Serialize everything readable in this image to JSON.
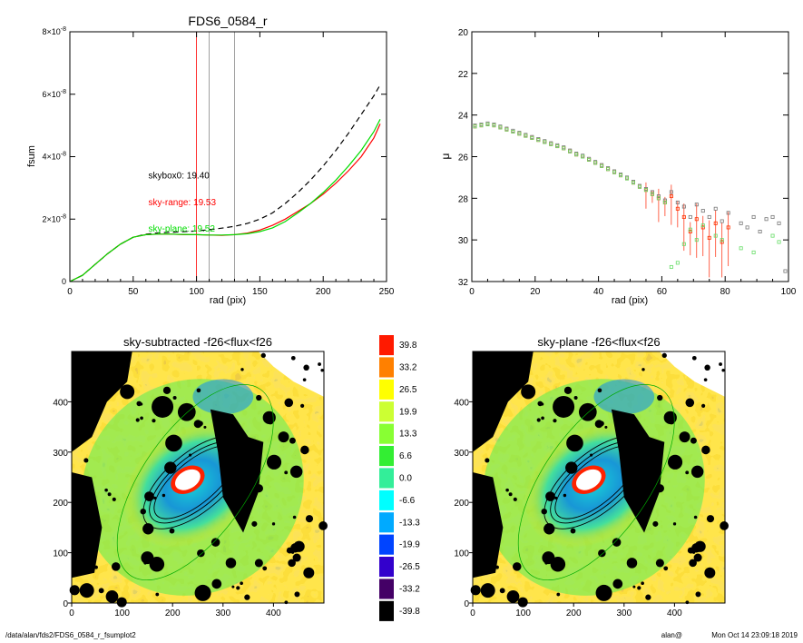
{
  "footer": {
    "path": "/data/alan/fds2/FDS6_0584_r_fsumplot2",
    "user": "alan@",
    "timestamp": "Mon Oct 14 23:09:18 2019"
  },
  "chart_data": [
    {
      "type": "line",
      "title": "FDS6_0584_r",
      "xlabel": "rad (pix)",
      "ylabel": "fsum",
      "xlim": [
        0,
        250
      ],
      "ylim": [
        0,
        8e-08
      ],
      "x_ticks": [
        "0",
        "50",
        "100",
        "150",
        "200",
        "250"
      ],
      "y_ticks": [
        {
          "mantissa": "0",
          "exponent": ""
        },
        {
          "mantissa": "2×10",
          "exponent": "-8"
        },
        {
          "mantissa": "4×10",
          "exponent": "-8"
        },
        {
          "mantissa": "6×10",
          "exponent": "-8"
        },
        {
          "mantissa": "8×10",
          "exponent": "-8"
        }
      ],
      "vlines": [
        {
          "x": 100,
          "color": "#ff0000"
        },
        {
          "x": 110,
          "color": "#888888"
        },
        {
          "x": 130,
          "color": "#888888"
        }
      ],
      "annotations": [
        {
          "text": "skybox0: 19.40",
          "x": 62,
          "y": 3.3e-08,
          "color": "#000000"
        },
        {
          "text": "sky-range: 19.53",
          "x": 62,
          "y": 2.45e-08,
          "color": "#ff0000"
        },
        {
          "text": "sky-plane: 19.52",
          "x": 62,
          "y": 1.6e-08,
          "color": "#00dd00"
        }
      ],
      "series": [
        {
          "style": "dashed",
          "color": "#000000",
          "x": [
            0,
            10,
            20,
            30,
            40,
            50,
            60,
            70,
            80,
            90,
            100,
            110,
            120,
            130,
            140,
            150,
            160,
            170,
            180,
            190,
            200,
            210,
            220,
            230,
            240,
            245
          ],
          "y": [
            0,
            2e-09,
            5.5e-09,
            9e-09,
            1.2e-08,
            1.42e-08,
            1.52e-08,
            1.56e-08,
            1.58e-08,
            1.6e-08,
            1.62e-08,
            1.66e-08,
            1.71e-08,
            1.77e-08,
            1.86e-08,
            2e-08,
            2.2e-08,
            2.5e-08,
            2.85e-08,
            3.25e-08,
            3.7e-08,
            4.2e-08,
            4.75e-08,
            5.35e-08,
            5.95e-08,
            6.3e-08
          ]
        },
        {
          "style": "solid",
          "color": "#ff0000",
          "x": [
            0,
            10,
            20,
            30,
            40,
            50,
            60,
            70,
            80,
            90,
            100,
            110,
            120,
            130,
            140,
            150,
            160,
            170,
            180,
            190,
            200,
            210,
            220,
            230,
            240,
            245
          ],
          "y": [
            0,
            2e-09,
            5.5e-09,
            9e-09,
            1.2e-08,
            1.42e-08,
            1.5e-08,
            1.52e-08,
            1.52e-08,
            1.5e-08,
            1.5e-08,
            1.49e-08,
            1.48e-08,
            1.5e-08,
            1.55e-08,
            1.65e-08,
            1.8e-08,
            2e-08,
            2.25e-08,
            2.5e-08,
            2.8e-08,
            3.15e-08,
            3.55e-08,
            4e-08,
            4.6e-08,
            5.05e-08
          ]
        },
        {
          "style": "solid",
          "color": "#00dd00",
          "x": [
            0,
            10,
            20,
            30,
            40,
            50,
            60,
            70,
            80,
            90,
            100,
            110,
            120,
            130,
            140,
            150,
            160,
            170,
            180,
            190,
            200,
            210,
            220,
            230,
            240,
            245
          ],
          "y": [
            0,
            2e-09,
            5.5e-09,
            9e-09,
            1.2e-08,
            1.42e-08,
            1.5e-08,
            1.52e-08,
            1.52e-08,
            1.51e-08,
            1.5e-08,
            1.49e-08,
            1.49e-08,
            1.5e-08,
            1.53e-08,
            1.6e-08,
            1.72e-08,
            1.92e-08,
            2.2e-08,
            2.5e-08,
            2.85e-08,
            3.25e-08,
            3.7e-08,
            4.2e-08,
            4.8e-08,
            5.2e-08
          ]
        }
      ]
    },
    {
      "type": "scatter",
      "title": "",
      "xlabel": "rad (pix)",
      "ylabel": "μ",
      "xlim": [
        0,
        100
      ],
      "ylim": [
        32,
        20
      ],
      "x_ticks": [
        "0",
        "20",
        "40",
        "60",
        "80",
        "100"
      ],
      "y_ticks": [
        "20",
        "22",
        "24",
        "26",
        "28",
        "30",
        "32"
      ],
      "series": [
        {
          "marker": "square",
          "color": "#777777",
          "x": [
            1,
            3,
            5,
            7,
            9,
            11,
            13,
            15,
            17,
            19,
            21,
            23,
            25,
            27,
            29,
            31,
            33,
            35,
            37,
            39,
            41,
            43,
            45,
            47,
            49,
            51,
            53,
            55,
            57,
            59,
            61,
            63,
            65,
            67,
            69,
            71,
            73,
            75,
            77,
            79,
            81,
            85,
            87,
            89,
            91,
            93,
            95,
            97,
            99
          ],
          "y": [
            24.5,
            24.45,
            24.4,
            24.45,
            24.55,
            24.65,
            24.75,
            24.85,
            24.95,
            25.05,
            25.15,
            25.25,
            25.35,
            25.45,
            25.55,
            25.7,
            25.85,
            25.95,
            26.1,
            26.25,
            26.4,
            26.55,
            26.7,
            26.85,
            27.0,
            27.2,
            27.4,
            27.55,
            27.7,
            27.9,
            28.1,
            27.7,
            28.2,
            28.4,
            28.9,
            28.3,
            28.6,
            28.9,
            28.5,
            29.1,
            28.7,
            29.2,
            29.4,
            28.9,
            29.6,
            29.0,
            28.9,
            29.2,
            31.5
          ]
        },
        {
          "marker": "square",
          "color": "#ff3300",
          "x": [
            1,
            3,
            5,
            7,
            9,
            11,
            13,
            15,
            17,
            19,
            21,
            23,
            25,
            27,
            29,
            31,
            33,
            35,
            37,
            39,
            41,
            43,
            45,
            47,
            49,
            51,
            53,
            55,
            57,
            59,
            61,
            63,
            65,
            67,
            69,
            71,
            73,
            75,
            77,
            79,
            81
          ],
          "y": [
            24.55,
            24.5,
            24.45,
            24.5,
            24.6,
            24.7,
            24.8,
            24.9,
            25.0,
            25.1,
            25.2,
            25.3,
            25.4,
            25.5,
            25.6,
            25.75,
            25.9,
            26.0,
            26.15,
            26.3,
            26.45,
            26.6,
            26.75,
            26.9,
            27.05,
            27.25,
            27.45,
            27.6,
            27.8,
            28.0,
            28.2,
            27.9,
            28.5,
            28.9,
            29.6,
            29.0,
            29.4,
            29.9,
            29.2,
            30.1,
            29.4
          ]
        },
        {
          "marker": "square",
          "color": "#66dd66",
          "x": [
            1,
            3,
            5,
            7,
            9,
            11,
            13,
            15,
            17,
            19,
            21,
            23,
            25,
            27,
            29,
            31,
            33,
            35,
            37,
            39,
            41,
            43,
            45,
            47,
            49,
            51,
            53,
            55,
            57,
            59,
            61,
            63,
            65,
            67,
            69,
            71,
            73,
            77,
            79,
            85,
            89,
            95,
            97
          ],
          "y": [
            24.55,
            24.5,
            24.45,
            24.5,
            24.6,
            24.7,
            24.8,
            24.9,
            25.0,
            25.1,
            25.2,
            25.3,
            25.4,
            25.5,
            25.6,
            25.75,
            25.9,
            26.0,
            26.15,
            26.3,
            26.45,
            26.6,
            26.75,
            26.9,
            27.05,
            27.25,
            27.45,
            27.6,
            27.8,
            28.0,
            28.2,
            31.3,
            31.1,
            30.2,
            29.5,
            30.0,
            29.3,
            29.8,
            30.0,
            30.4,
            30.6,
            29.8,
            30.1
          ]
        }
      ]
    },
    {
      "type": "heatmap",
      "title": "sky-subtracted -f26<flux<f26",
      "xlim": [
        0,
        500
      ],
      "ylim": [
        0,
        500
      ],
      "x_ticks": [
        "0",
        "100",
        "200",
        "300",
        "400"
      ],
      "y_ticks": [
        "0",
        "100",
        "200",
        "300",
        "400"
      ]
    },
    {
      "type": "heatmap",
      "title": "sky-plane -f26<flux<f26",
      "xlim": [
        0,
        500
      ],
      "ylim": [
        0,
        500
      ],
      "x_ticks": [
        "0",
        "100",
        "200",
        "300",
        "400"
      ],
      "y_ticks": [
        "0",
        "100",
        "200",
        "300",
        "400"
      ]
    }
  ],
  "colorbar": {
    "labels": [
      "39.8",
      "33.2",
      "26.5",
      "19.9",
      "13.3",
      "6.6",
      "0.0",
      "-6.6",
      "-13.3",
      "-19.9",
      "-26.5",
      "-33.2",
      "-39.8"
    ],
    "colors": [
      "#ff1a00",
      "#ff8000",
      "#ffff00",
      "#ccff33",
      "#88ff33",
      "#33ee33",
      "#33ee99",
      "#00ffff",
      "#00aaff",
      "#0044ff",
      "#3300cc",
      "#440066",
      "#000000"
    ]
  }
}
